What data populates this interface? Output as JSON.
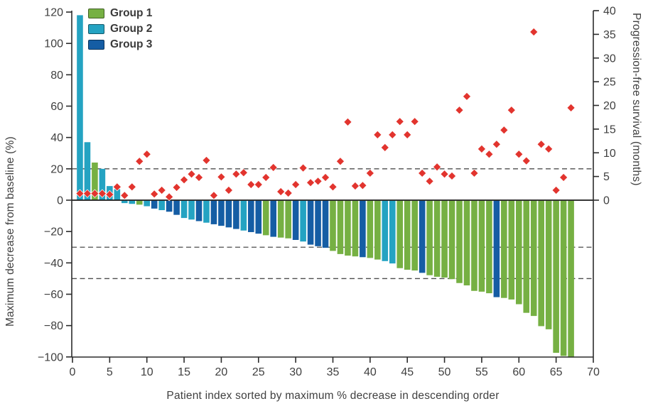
{
  "chart_data": {
    "type": "bar",
    "subtype": "waterfall-with-scatter-overlay",
    "title": "",
    "xlabel": "Patient index sorted by maximum % decrease in descending order",
    "ylabel_left": "Maximum decrease from baseline (%)",
    "ylabel_right": "Progression-free survival (months)",
    "x_range": [
      0,
      70
    ],
    "y_left_range": [
      -100,
      120
    ],
    "y_right_range": [
      0,
      40
    ],
    "grid": "off",
    "x_ticks": [
      0,
      5,
      10,
      15,
      20,
      25,
      30,
      35,
      40,
      45,
      50,
      55,
      60,
      65,
      70
    ],
    "x_tick_labels": [
      "0",
      "5",
      "10",
      "15",
      "20",
      "25",
      "30",
      "35",
      "40",
      "45",
      "50",
      "55",
      "60",
      "65",
      "70"
    ],
    "y_left_ticks": [
      120,
      100,
      80,
      60,
      40,
      20,
      0,
      -20,
      -40,
      -60,
      -80,
      -100
    ],
    "y_left_tick_labels": [
      "120",
      "100",
      "80",
      "60",
      "40",
      "20",
      "0",
      "−20",
      "−40",
      "−60",
      "−80",
      "−100"
    ],
    "y_right_ticks": [
      40,
      35,
      30,
      25,
      20,
      15,
      10,
      5,
      0
    ],
    "y_right_tick_labels": [
      "40",
      "35",
      "30",
      "25",
      "20",
      "15",
      "10",
      "5",
      "0"
    ],
    "reference_lines_left_axis": [
      20,
      -30,
      -50
    ],
    "legend_position": "top-left-inside",
    "groups": [
      {
        "name": "Group 1",
        "color": "#76b043"
      },
      {
        "name": "Group 2",
        "color": "#24a3c2"
      },
      {
        "name": "Group 3",
        "color": "#155da4"
      }
    ],
    "scatter_overlay": {
      "marker": "diamond",
      "color": "#e2342e",
      "axis": "right"
    },
    "series": {
      "patient_index": [
        1,
        2,
        3,
        4,
        5,
        6,
        7,
        8,
        9,
        10,
        11,
        12,
        13,
        14,
        15,
        16,
        17,
        18,
        19,
        20,
        21,
        22,
        23,
        24,
        25,
        26,
        27,
        28,
        29,
        30,
        31,
        32,
        33,
        34,
        35,
        36,
        37,
        38,
        39,
        40,
        41,
        42,
        43,
        44,
        45,
        46,
        47,
        48,
        49,
        50,
        51,
        52,
        53,
        54,
        55,
        56,
        57,
        58,
        59,
        60,
        61,
        62,
        63,
        64,
        65,
        66,
        67
      ],
      "max_decrease_pct": [
        118,
        37,
        24,
        20,
        9,
        7,
        -1.5,
        -2,
        -2.5,
        -3.5,
        -5,
        -6,
        -7,
        -9,
        -11,
        -12,
        -13,
        -14,
        -15,
        -16,
        -17,
        -18,
        -19,
        -20,
        -21,
        -22,
        -23,
        -23.5,
        -24,
        -25,
        -26,
        -28,
        -29,
        -30,
        -32,
        -34,
        -35,
        -35.5,
        -36,
        -36.5,
        -37.5,
        -38.5,
        -40,
        -43,
        -44,
        -44.5,
        -46,
        -47.5,
        -48.5,
        -49,
        -50,
        -52.5,
        -54,
        -57.5,
        -58,
        -59,
        -61.5,
        -62,
        -63,
        -66,
        -71.5,
        -73.5,
        -80,
        -82,
        -97,
        -99,
        -100
      ],
      "group": [
        2,
        2,
        1,
        2,
        2,
        2,
        2,
        2,
        1,
        2,
        3,
        2,
        3,
        3,
        2,
        2,
        3,
        2,
        3,
        3,
        3,
        3,
        2,
        3,
        3,
        1,
        3,
        1,
        1,
        3,
        2,
        3,
        3,
        3,
        1,
        1,
        1,
        1,
        3,
        1,
        1,
        2,
        2,
        1,
        1,
        1,
        3,
        1,
        1,
        1,
        1,
        1,
        1,
        1,
        1,
        1,
        3,
        1,
        1,
        1,
        1,
        1,
        1,
        1,
        1,
        1,
        1
      ],
      "pfs_months": [
        1.4,
        1.4,
        1.4,
        1.4,
        1.2,
        2.8,
        1.0,
        2.8,
        8.2,
        9.7,
        1.3,
        2.1,
        0.7,
        2.7,
        4.3,
        5.5,
        4.8,
        8.4,
        1.0,
        4.9,
        2.1,
        5.5,
        5.8,
        3.3,
        3.3,
        4.8,
        6.9,
        1.8,
        1.5,
        3.3,
        6.8,
        3.7,
        4.0,
        4.8,
        2.8,
        8.2,
        16.5,
        3.0,
        3.1,
        5.7,
        13.8,
        11.1,
        13.8,
        16.6,
        13.8,
        16.6,
        5.7,
        4.0,
        7.0,
        5.5,
        5.1,
        19.0,
        21.9,
        5.7,
        10.8,
        9.7,
        11.8,
        14.8,
        19.0,
        9.7,
        8.3,
        35.5,
        11.8,
        10.8,
        2.1,
        4.8,
        19.5
      ]
    },
    "colors": {
      "axis_text": "#3f3f3f",
      "spine": "#2b2b2b",
      "zero_line": "#1a1a1a",
      "dashed_line": "#4d4d4d",
      "background": "#ffffff"
    }
  }
}
